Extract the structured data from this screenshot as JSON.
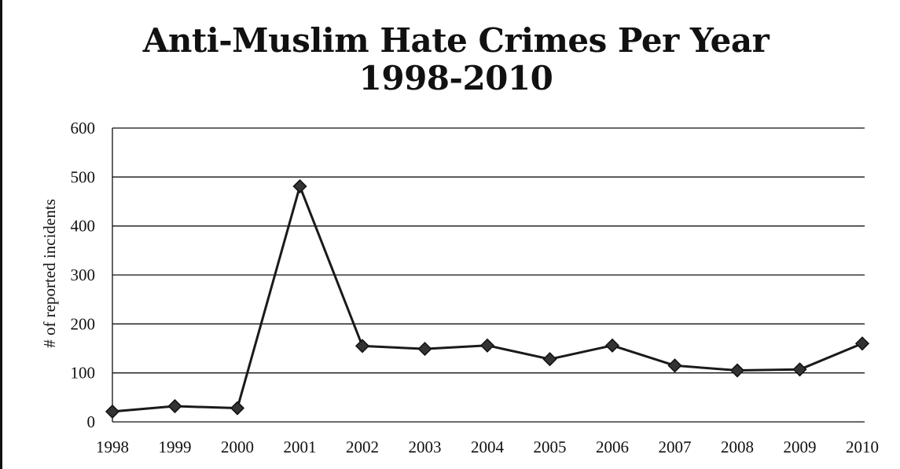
{
  "chart_data": {
    "type": "line",
    "title": "Anti-Muslim Hate Crimes Per Year",
    "subtitle": "1998-2010",
    "xlabel": "",
    "ylabel": "# of reported incidents",
    "ylim": [
      0,
      600
    ],
    "yticks": [
      "0",
      "100",
      "200",
      "300",
      "400",
      "500",
      "600"
    ],
    "categories": [
      "1998",
      "1999",
      "2000",
      "2001",
      "2002",
      "2003",
      "2004",
      "2005",
      "2006",
      "2007",
      "2008",
      "2009",
      "2010"
    ],
    "series": [
      {
        "values": [
          21,
          32,
          28,
          481,
          155,
          149,
          156,
          128,
          156,
          115,
          105,
          107,
          160
        ],
        "marker": "diamond",
        "color": "#1a1a1a"
      }
    ],
    "grid": "horizontal",
    "legend": "none"
  }
}
